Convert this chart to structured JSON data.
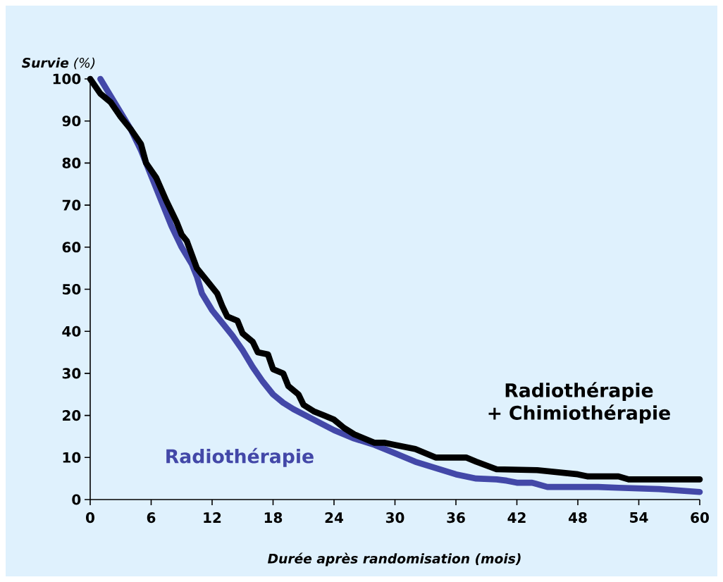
{
  "chart_data": {
    "type": "line",
    "xlabel": "Durée après randomisation (mois)",
    "ylabel": "**Survie** (%)",
    "xlim": [
      0,
      60
    ],
    "ylim": [
      0,
      100
    ],
    "xticks": [
      0,
      6,
      12,
      18,
      24,
      30,
      36,
      42,
      48,
      54,
      60
    ],
    "yticks": [
      0,
      10,
      20,
      30,
      40,
      50,
      60,
      70,
      80,
      90,
      100
    ],
    "legend": false,
    "line_style": "solid",
    "series": [
      {
        "name": "Radiothérapie",
        "color": "#4348a8",
        "x": [
          1,
          2,
          3,
          4,
          5,
          6,
          7,
          8,
          9,
          10,
          10.5,
          11,
          12,
          13,
          14,
          15,
          16,
          17,
          18,
          19,
          20,
          22,
          24,
          26,
          28,
          30,
          32,
          34,
          36,
          38,
          40,
          41,
          42,
          43.5,
          45,
          48,
          50,
          52,
          56,
          60
        ],
        "values": [
          100,
          96,
          92,
          88,
          83,
          77,
          71,
          65,
          60,
          56,
          53,
          49,
          45,
          42,
          39,
          35.5,
          31.5,
          28,
          25,
          23,
          21.5,
          19,
          16.5,
          14.5,
          13,
          11,
          9,
          7.5,
          6,
          5,
          4.8,
          4.5,
          4,
          4,
          3,
          3,
          3,
          2.8,
          2.5,
          1.8
        ]
      },
      {
        "name": "Radiothérapie + Chimiothérapie",
        "color": "#000000",
        "x": [
          0,
          1,
          2,
          3,
          4,
          5,
          5.5,
          6.5,
          7.5,
          8.5,
          9,
          9.5,
          10.5,
          11.5,
          12.5,
          13,
          13.5,
          14.5,
          15,
          16,
          16.5,
          17.5,
          18,
          19,
          19.5,
          20.5,
          21,
          22,
          23,
          24,
          25,
          26,
          28,
          29,
          30,
          32,
          34,
          37,
          38,
          40,
          44,
          46,
          48,
          49,
          52,
          53,
          60
        ],
        "values": [
          100,
          96.5,
          94.5,
          91,
          88,
          84.5,
          80,
          76.5,
          71,
          66,
          63,
          61.5,
          55,
          52,
          49,
          46,
          43.5,
          42.5,
          39.5,
          37.5,
          35,
          34.5,
          31,
          30,
          27,
          25,
          22.5,
          21,
          20,
          19,
          17,
          15.5,
          13.5,
          13.5,
          13,
          12,
          10,
          10,
          9,
          7.2,
          7,
          6.5,
          6,
          5.5,
          5.5,
          4.8,
          4.8
        ]
      }
    ]
  }
}
